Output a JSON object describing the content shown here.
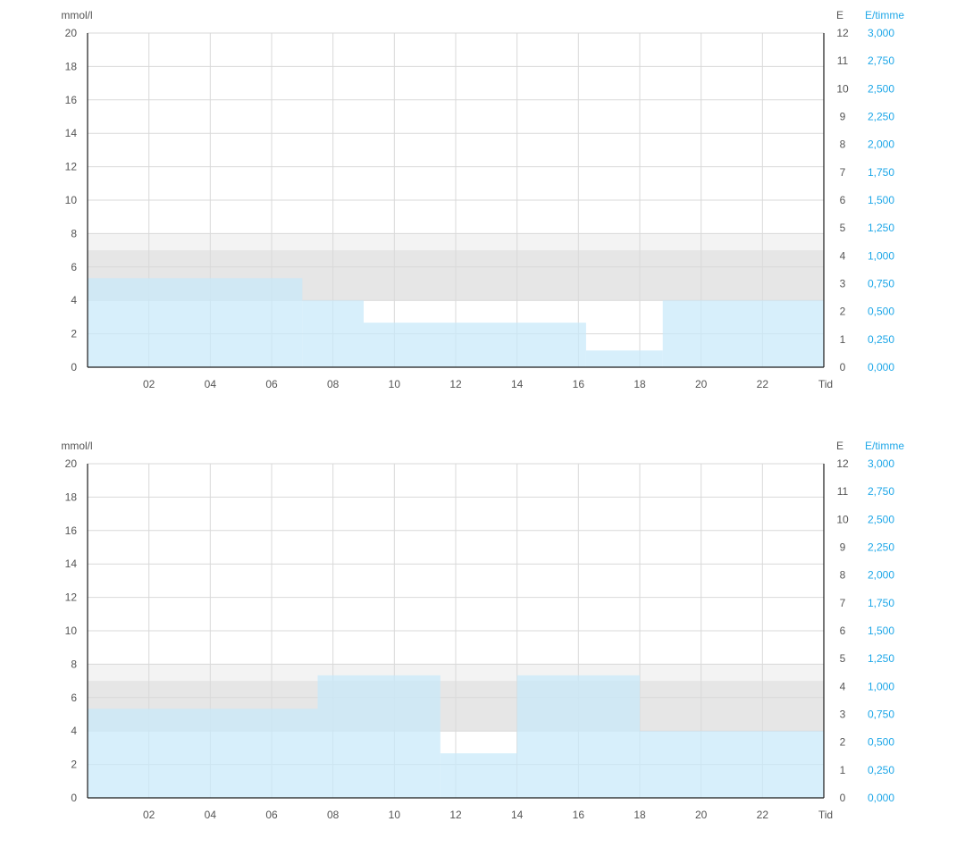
{
  "colors": {
    "basal_fill": "#c7e9fa",
    "target_band": "#e6e6e6",
    "outer_band": "#f3f3f3",
    "grid": "#d9d9d9",
    "axis": "#1a1a1a",
    "left_tick": "#555555",
    "rate_tick": "#1ea7e8"
  },
  "chart_data": [
    {
      "type": "area",
      "left_axis_label": "mmol/l",
      "right_axis_label_units": "E",
      "right_axis_label_rate": "E/timme",
      "x_axis_label": "Tid",
      "xlim": [
        0,
        24
      ],
      "ylim": [
        0,
        20
      ],
      "units_lim": [
        0,
        12
      ],
      "rate_lim": [
        0,
        3
      ],
      "x_ticks": [
        "02",
        "04",
        "06",
        "08",
        "10",
        "12",
        "14",
        "16",
        "18",
        "20",
        "22"
      ],
      "y_ticks": [
        "0",
        "2",
        "4",
        "6",
        "8",
        "10",
        "12",
        "14",
        "16",
        "18",
        "20"
      ],
      "units_ticks": [
        "0",
        "1",
        "2",
        "3",
        "4",
        "5",
        "6",
        "7",
        "8",
        "9",
        "10",
        "11",
        "12"
      ],
      "rate_ticks": [
        "0,000",
        "0,250",
        "0,500",
        "0,750",
        "1,000",
        "1,250",
        "1,500",
        "1,750",
        "2,000",
        "2,250",
        "2,500",
        "2,750",
        "3,000"
      ],
      "bands": [
        {
          "from": 4,
          "to": 8,
          "level": "outer"
        },
        {
          "from": 4,
          "to": 7,
          "level": "target"
        }
      ],
      "basal_segments": [
        {
          "start": 0,
          "end": 7,
          "rate": 0.8
        },
        {
          "start": 7,
          "end": 9,
          "rate": 0.6
        },
        {
          "start": 9,
          "end": 16.25,
          "rate": 0.4
        },
        {
          "start": 16.25,
          "end": 18.75,
          "rate": 0.15
        },
        {
          "start": 18.75,
          "end": 24,
          "rate": 0.6
        }
      ],
      "grid": true
    },
    {
      "type": "area",
      "left_axis_label": "mmol/l",
      "right_axis_label_units": "E",
      "right_axis_label_rate": "E/timme",
      "x_axis_label": "Tid",
      "xlim": [
        0,
        24
      ],
      "ylim": [
        0,
        20
      ],
      "units_lim": [
        0,
        12
      ],
      "rate_lim": [
        0,
        3
      ],
      "x_ticks": [
        "02",
        "04",
        "06",
        "08",
        "10",
        "12",
        "14",
        "16",
        "18",
        "20",
        "22"
      ],
      "y_ticks": [
        "0",
        "2",
        "4",
        "6",
        "8",
        "10",
        "12",
        "14",
        "16",
        "18",
        "20"
      ],
      "units_ticks": [
        "0",
        "1",
        "2",
        "3",
        "4",
        "5",
        "6",
        "7",
        "8",
        "9",
        "10",
        "11",
        "12"
      ],
      "rate_ticks": [
        "0,000",
        "0,250",
        "0,500",
        "0,750",
        "1,000",
        "1,250",
        "1,500",
        "1,750",
        "2,000",
        "2,250",
        "2,500",
        "2,750",
        "3,000"
      ],
      "bands": [
        {
          "from": 4,
          "to": 8,
          "level": "outer"
        },
        {
          "from": 4,
          "to": 7,
          "level": "target"
        }
      ],
      "basal_segments": [
        {
          "start": 0,
          "end": 7.5,
          "rate": 0.8
        },
        {
          "start": 7.5,
          "end": 11.5,
          "rate": 1.1
        },
        {
          "start": 11.5,
          "end": 14,
          "rate": 0.4
        },
        {
          "start": 14,
          "end": 18,
          "rate": 1.1
        },
        {
          "start": 18,
          "end": 24,
          "rate": 0.6
        }
      ],
      "grid": true
    }
  ]
}
